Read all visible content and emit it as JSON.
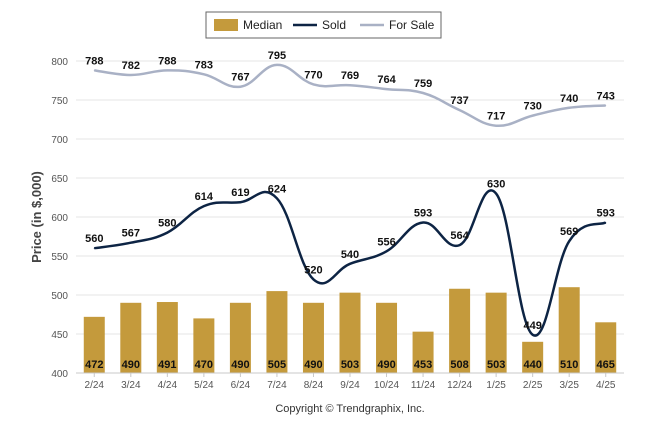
{
  "chart_data": {
    "type": "bar",
    "ylabel": "Price (in $,000)",
    "ylim": [
      400,
      800
    ],
    "yticks": [
      400,
      450,
      500,
      550,
      600,
      650,
      700,
      750,
      800
    ],
    "grid": true,
    "legend_position": "top-center",
    "categories": [
      "2/24",
      "3/24",
      "4/24",
      "5/24",
      "6/24",
      "7/24",
      "8/24",
      "9/24",
      "10/24",
      "11/24",
      "12/24",
      "1/25",
      "2/25",
      "3/25",
      "4/25"
    ],
    "series": [
      {
        "name": "Median",
        "kind": "bar",
        "color": "#c49a3c",
        "values": [
          472,
          490,
          491,
          470,
          490,
          505,
          490,
          503,
          490,
          453,
          508,
          503,
          440,
          510,
          465
        ]
      },
      {
        "name": "Sold",
        "kind": "line",
        "color": "#0d2444",
        "values": [
          560,
          567,
          580,
          614,
          619,
          624,
          520,
          540,
          556,
          593,
          564,
          630,
          449,
          569,
          593
        ]
      },
      {
        "name": "For Sale",
        "kind": "line",
        "color": "#a9b1c5",
        "values": [
          788,
          782,
          788,
          783,
          767,
          795,
          770,
          769,
          764,
          759,
          737,
          717,
          730,
          740,
          743
        ]
      }
    ]
  },
  "footer": {
    "copyright": "Copyright © Trendgraphix, Inc."
  }
}
